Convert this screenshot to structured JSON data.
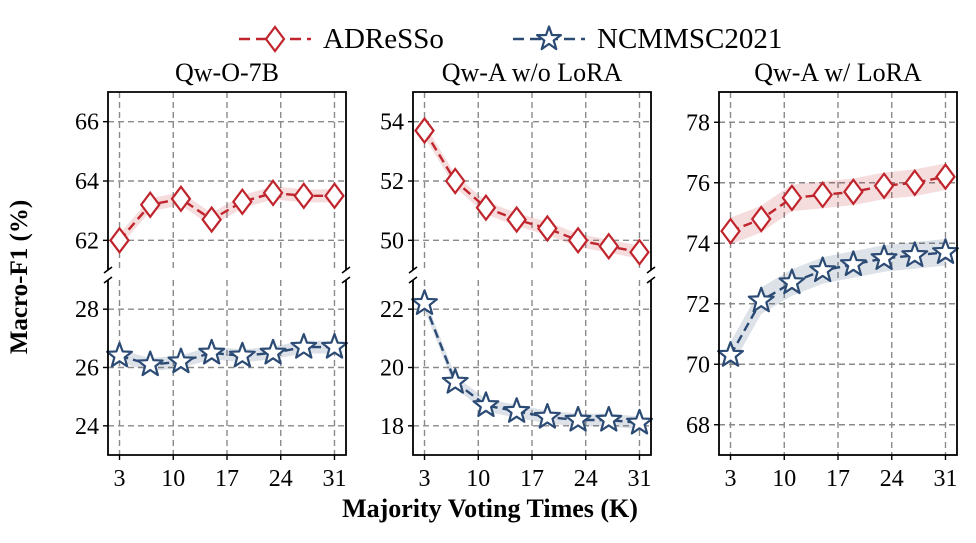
{
  "legend": [
    {
      "label": "ADReSSo",
      "color": "#c0242c",
      "marker": "diamond"
    },
    {
      "label": "NCMMSC2021",
      "color": "#2b4a74",
      "marker": "star"
    }
  ],
  "xlabel": "Majority Voting Times (K)",
  "ylabel": "Macro-F1 (%)",
  "chart_data": [
    {
      "type": "line",
      "title": "Qw-O-7B",
      "x": [
        3,
        7,
        11,
        15,
        19,
        23,
        27,
        31
      ],
      "xticks": [
        3,
        10,
        17,
        24,
        31
      ],
      "xlim": [
        1.5,
        32.5
      ],
      "broken_axis": true,
      "grid": true,
      "top": {
        "series": "ADReSSo",
        "ylim": [
          61,
          67
        ],
        "yticks": [
          62,
          64,
          66
        ],
        "values": [
          62.0,
          63.2,
          63.4,
          62.7,
          63.3,
          63.6,
          63.5,
          63.5
        ]
      },
      "bottom": {
        "series": "NCMMSC2021",
        "ylim": [
          23,
          29
        ],
        "yticks": [
          24,
          26,
          28
        ],
        "values": [
          26.4,
          26.1,
          26.2,
          26.5,
          26.4,
          26.5,
          26.7,
          26.7
        ]
      }
    },
    {
      "type": "line",
      "title": "Qw-A w/o LoRA",
      "x": [
        3,
        7,
        11,
        15,
        19,
        23,
        27,
        31
      ],
      "xticks": [
        3,
        10,
        17,
        24,
        31
      ],
      "xlim": [
        1.5,
        32.5
      ],
      "broken_axis": true,
      "grid": true,
      "top": {
        "series": "ADReSSo",
        "ylim": [
          49,
          55
        ],
        "yticks": [
          50,
          52,
          54
        ],
        "values": [
          53.7,
          52.0,
          51.1,
          50.7,
          50.4,
          50.0,
          49.8,
          49.6
        ]
      },
      "bottom": {
        "series": "NCMMSC2021",
        "ylim": [
          17,
          23
        ],
        "yticks": [
          18,
          20,
          22
        ],
        "values": [
          22.2,
          19.5,
          18.7,
          18.5,
          18.3,
          18.2,
          18.2,
          18.1
        ]
      }
    },
    {
      "type": "line",
      "title": "Qw-A w/ LoRA",
      "x": [
        3,
        7,
        11,
        15,
        19,
        23,
        27,
        31
      ],
      "xticks": [
        3,
        10,
        17,
        24,
        31
      ],
      "xlim": [
        1.5,
        32.5
      ],
      "broken_axis": false,
      "grid": true,
      "ylim": [
        67,
        79
      ],
      "yticks": [
        68,
        70,
        72,
        74,
        76,
        78
      ],
      "series": [
        {
          "name": "ADReSSo",
          "values": [
            74.4,
            74.8,
            75.5,
            75.6,
            75.7,
            75.9,
            76.0,
            76.2
          ]
        },
        {
          "name": "NCMMSC2021",
          "values": [
            70.3,
            72.1,
            72.7,
            73.1,
            73.3,
            73.5,
            73.6,
            73.7
          ]
        }
      ]
    }
  ]
}
